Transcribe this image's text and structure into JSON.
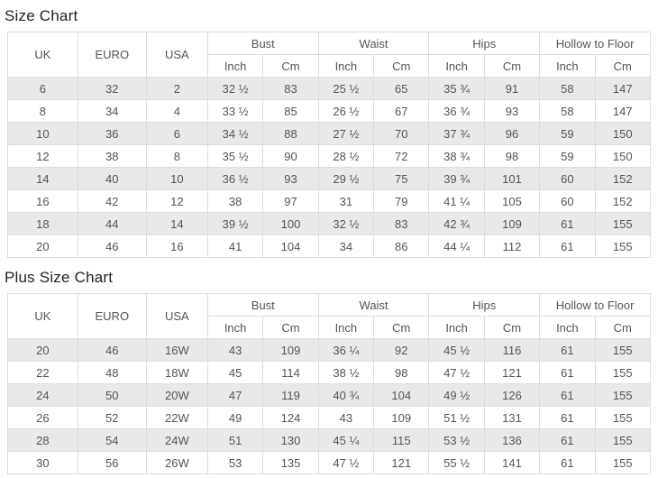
{
  "colors": {
    "row_stripe": "#e9e9e9",
    "table_border": "#dddddd",
    "cell_text": "#555555",
    "title_text": "#222222"
  },
  "tables": [
    {
      "title": "Size Chart",
      "group_headers": [
        {
          "label": "UK",
          "rowspan": 2
        },
        {
          "label": "EURO",
          "rowspan": 2
        },
        {
          "label": "USA",
          "rowspan": 2
        },
        {
          "label": "Bust",
          "colspan": 2
        },
        {
          "label": "Waist",
          "colspan": 2
        },
        {
          "label": "Hips",
          "colspan": 2
        },
        {
          "label": "Hollow to Floor",
          "colspan": 2
        }
      ],
      "sub_headers": [
        "Inch",
        "Cm",
        "Inch",
        "Cm",
        "Inch",
        "Cm",
        "Inch",
        "Cm"
      ],
      "rows": [
        [
          "6",
          "32",
          "2",
          "32 ½",
          "83",
          "25 ½",
          "65",
          "35 ¾",
          "91",
          "58",
          "147"
        ],
        [
          "8",
          "34",
          "4",
          "33 ½",
          "85",
          "26 ½",
          "67",
          "36 ¾",
          "93",
          "58",
          "147"
        ],
        [
          "10",
          "36",
          "6",
          "34 ½",
          "88",
          "27 ½",
          "70",
          "37 ¾",
          "96",
          "59",
          "150"
        ],
        [
          "12",
          "38",
          "8",
          "35 ½",
          "90",
          "28 ½",
          "72",
          "38 ¾",
          "98",
          "59",
          "150"
        ],
        [
          "14",
          "40",
          "10",
          "36 ½",
          "93",
          "29 ½",
          "75",
          "39 ¾",
          "101",
          "60",
          "152"
        ],
        [
          "16",
          "42",
          "12",
          "38",
          "97",
          "31",
          "79",
          "41 ¼",
          "105",
          "60",
          "152"
        ],
        [
          "18",
          "44",
          "14",
          "39 ½",
          "100",
          "32 ½",
          "83",
          "42 ¾",
          "109",
          "61",
          "155"
        ],
        [
          "20",
          "46",
          "16",
          "41",
          "104",
          "34",
          "86",
          "44 ¼",
          "112",
          "61",
          "155"
        ]
      ]
    },
    {
      "title": "Plus Size Chart",
      "group_headers": [
        {
          "label": "UK",
          "rowspan": 2
        },
        {
          "label": "EURO",
          "rowspan": 2
        },
        {
          "label": "USA",
          "rowspan": 2
        },
        {
          "label": "Bust",
          "colspan": 2
        },
        {
          "label": "Waist",
          "colspan": 2
        },
        {
          "label": "Hips",
          "colspan": 2
        },
        {
          "label": "Hollow to Floor",
          "colspan": 2
        }
      ],
      "sub_headers": [
        "Inch",
        "Cm",
        "Inch",
        "Cm",
        "Inch",
        "Cm",
        "Inch",
        "Cm"
      ],
      "rows": [
        [
          "20",
          "46",
          "16W",
          "43",
          "109",
          "36 ¼",
          "92",
          "45 ½",
          "116",
          "61",
          "155"
        ],
        [
          "22",
          "48",
          "18W",
          "45",
          "114",
          "38 ½",
          "98",
          "47 ½",
          "121",
          "61",
          "155"
        ],
        [
          "24",
          "50",
          "20W",
          "47",
          "119",
          "40 ¾",
          "104",
          "49 ½",
          "126",
          "61",
          "155"
        ],
        [
          "26",
          "52",
          "22W",
          "49",
          "124",
          "43",
          "109",
          "51 ½",
          "131",
          "61",
          "155"
        ],
        [
          "28",
          "54",
          "24W",
          "51",
          "130",
          "45 ¼",
          "115",
          "53 ½",
          "136",
          "61",
          "155"
        ],
        [
          "30",
          "56",
          "26W",
          "53",
          "135",
          "47 ½",
          "121",
          "55 ½",
          "141",
          "61",
          "155"
        ]
      ]
    }
  ]
}
